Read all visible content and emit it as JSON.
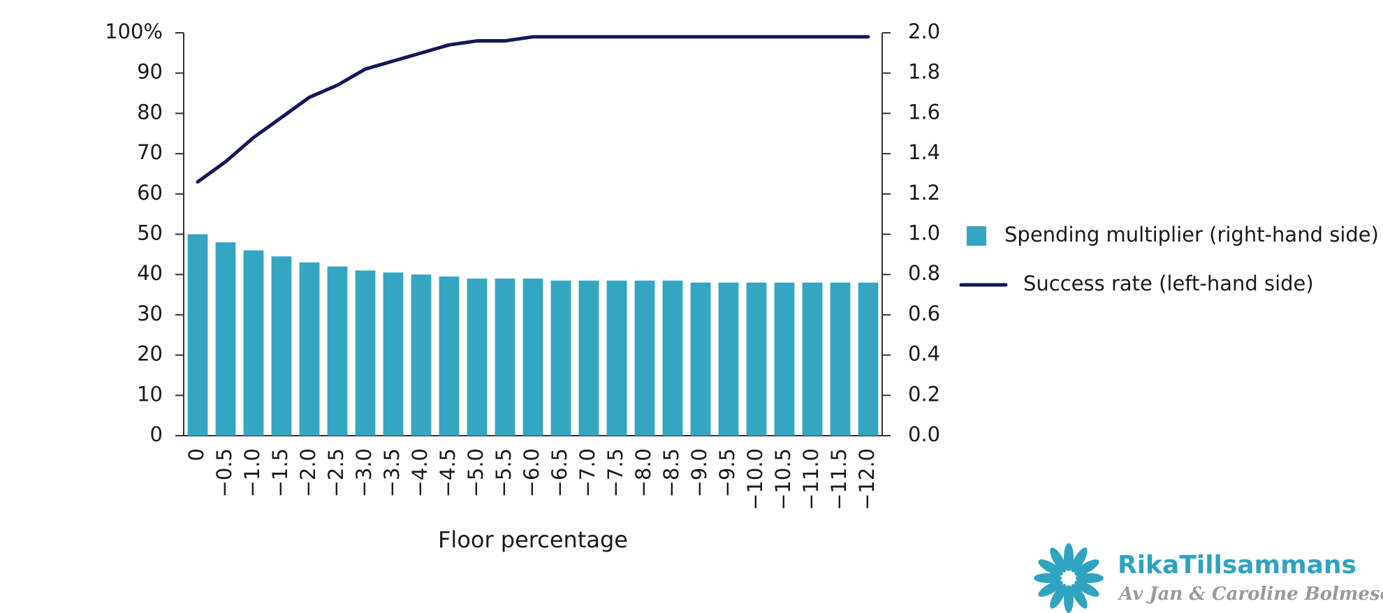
{
  "chart_data": {
    "type": "bar_line",
    "x_label": "Floor percentage",
    "categories": [
      "0",
      "−0.5",
      "−1.0",
      "−1.5",
      "−2.0",
      "−2.5",
      "−3.0",
      "−3.5",
      "−4.0",
      "−4.5",
      "−5.0",
      "−5.5",
      "−6.0",
      "−6.5",
      "−7.0",
      "−7.5",
      "−8.0",
      "−8.5",
      "−9.0",
      "−9.5",
      "−10.0",
      "−10.5",
      "−11.0",
      "−11.5",
      "−12.0"
    ],
    "series": [
      {
        "name": "Spending multiplier (right-hand side)",
        "type": "bar",
        "axis": "y2",
        "color": "#35a6c1",
        "values": [
          1.0,
          0.96,
          0.92,
          0.89,
          0.86,
          0.84,
          0.82,
          0.81,
          0.8,
          0.79,
          0.78,
          0.78,
          0.78,
          0.77,
          0.77,
          0.77,
          0.77,
          0.77,
          0.76,
          0.76,
          0.76,
          0.76,
          0.76,
          0.76,
          0.76
        ]
      },
      {
        "name": "Success rate (left-hand side)",
        "type": "line",
        "axis": "y",
        "color": "#14175a",
        "values": [
          63,
          68,
          74,
          79,
          84,
          87,
          91,
          93,
          95,
          97,
          98,
          98,
          99,
          99,
          99,
          99,
          99,
          99,
          99,
          99,
          99,
          99,
          99,
          99,
          99
        ]
      }
    ],
    "ylim": [
      0,
      100
    ],
    "yticks": [
      0,
      10,
      20,
      30,
      40,
      50,
      60,
      70,
      80,
      90,
      {
        "value": 100,
        "label": "100%"
      }
    ],
    "y2lim": [
      0,
      2
    ],
    "y2ticks": [
      {
        "value": 0,
        "label": "0.0"
      },
      0.2,
      0.4,
      0.6,
      0.8,
      {
        "value": 1,
        "label": "1.0"
      },
      1.2,
      1.4,
      1.6,
      1.8,
      {
        "value": 2,
        "label": "2.0"
      }
    ],
    "grid": false
  },
  "watermark": {
    "brand": "RikaTillsammans",
    "byline": "Av Jan & Caroline Bolmeson"
  }
}
